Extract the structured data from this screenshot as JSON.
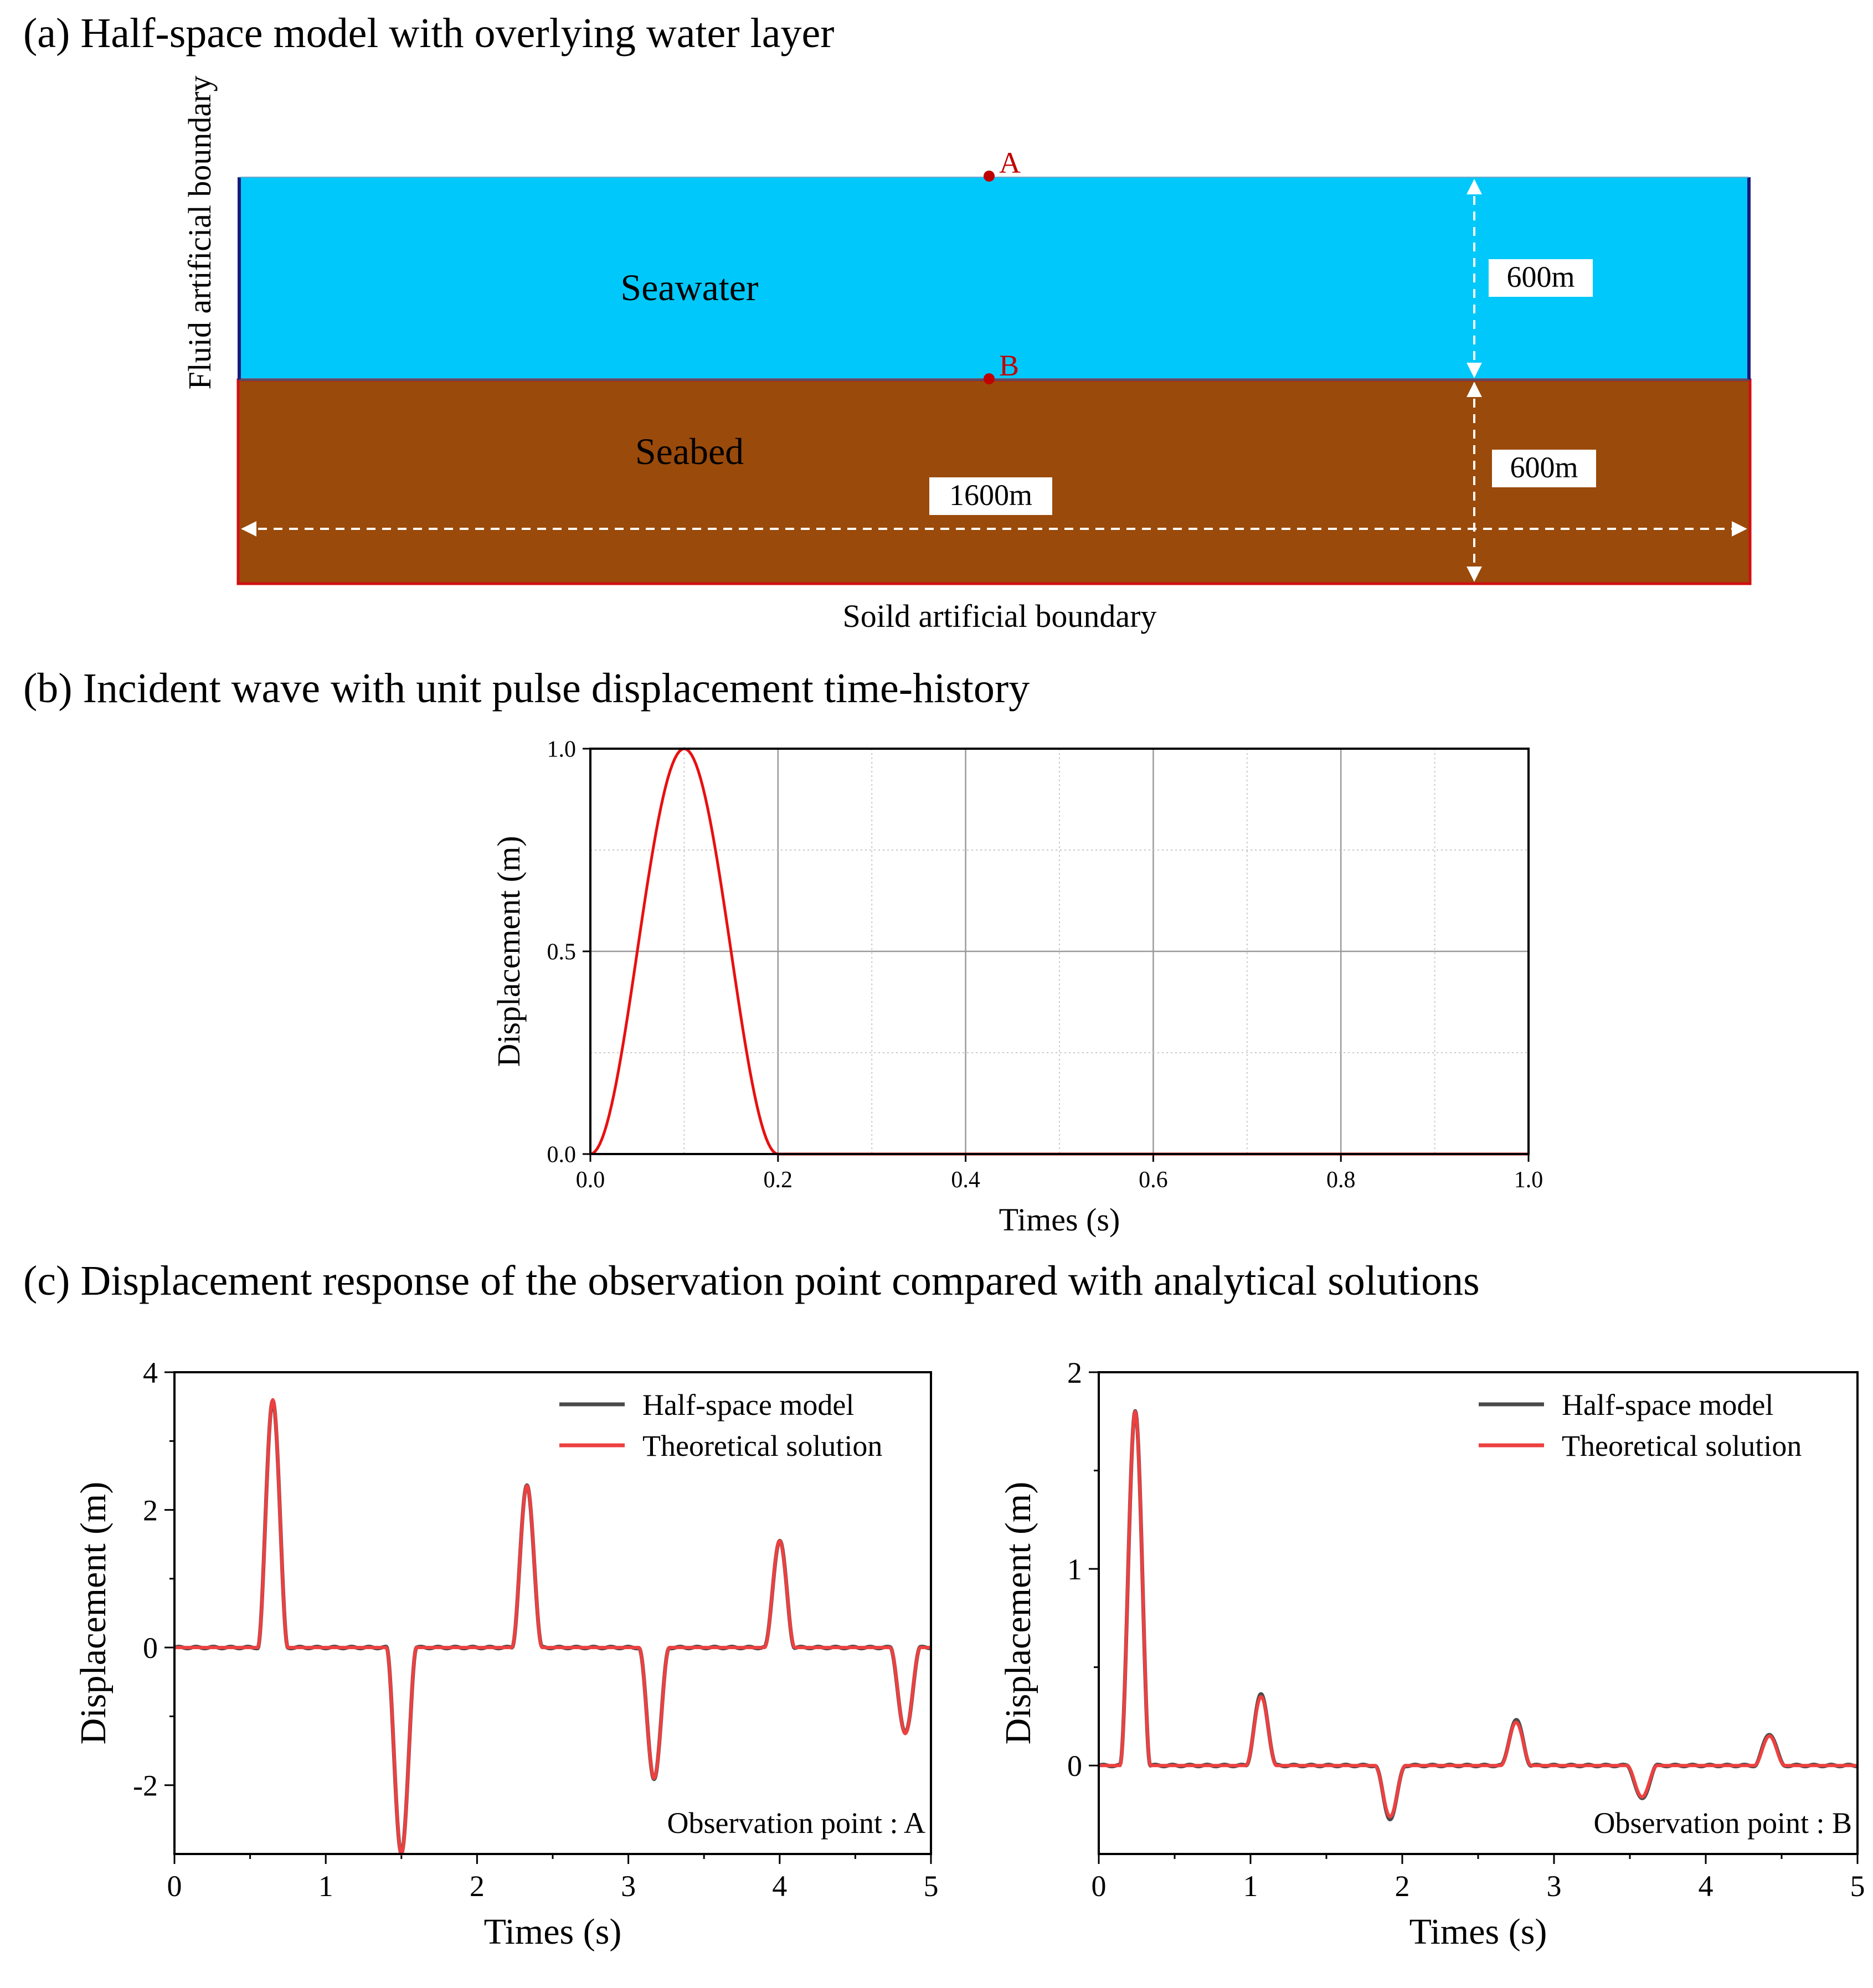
{
  "panel_a": {
    "title": "(a) Half-space model with overlying water layer",
    "fluid_boundary_label": "Fluid artificial boundary",
    "solid_boundary_label": "Soild artificial boundary",
    "seawater_label": "Seawater",
    "seabed_label": "Seabed",
    "point_a": "A",
    "point_b": "B",
    "water_depth_label": "600m",
    "seabed_depth_label": "600m",
    "width_label": "1600m",
    "colors": {
      "seawater": "#00c8fa",
      "seabed": "#9a4a0a",
      "points": "#c00000",
      "fluid_boundary": "#1a1a7a",
      "solid_boundary": "#d01010"
    }
  },
  "panel_b": {
    "title": "(b) Incident wave with unit pulse displacement time-history"
  },
  "panel_c": {
    "title": "(c) Displacement response of the observation point compared with analytical solutions"
  },
  "chart_data": [
    {
      "id": "incident",
      "type": "line",
      "xlabel": "Times (s)",
      "ylabel": "Displacement (m)",
      "xlim": [
        0,
        1.0
      ],
      "ylim": [
        0,
        1.0
      ],
      "xticks": [
        "0.0",
        "0.2",
        "0.4",
        "0.6",
        "0.8",
        "1.0"
      ],
      "xtick_values": [
        0,
        0.2,
        0.4,
        0.6,
        0.8,
        1.0
      ],
      "yticks": [
        "0.0",
        "0.5",
        "1.0"
      ],
      "ytick_values": [
        0,
        0.5,
        1.0
      ],
      "grid": true,
      "series": [
        {
          "color": "#e81010",
          "shape": "pulse",
          "x": [
            0,
            0.05,
            0.1,
            0.15,
            0.2,
            1.0
          ],
          "y": [
            0,
            0.5,
            1.0,
            0.5,
            0,
            0
          ]
        }
      ]
    },
    {
      "id": "point-A",
      "type": "line",
      "xlabel": "Times (s)",
      "ylabel": "Displacement (m)",
      "xlim": [
        0,
        5
      ],
      "ylim": [
        -3,
        4
      ],
      "xticks": [
        "0",
        "1",
        "2",
        "3",
        "4",
        "5"
      ],
      "xtick_values": [
        0,
        1,
        2,
        3,
        4,
        5
      ],
      "yticks": [
        "-2",
        "0",
        "2",
        "4"
      ],
      "ytick_values": [
        -2,
        0,
        2,
        4
      ],
      "grid": false,
      "annotation": "Observation point : A",
      "legend_position": "top-right",
      "pulse_half_width": 0.1,
      "series": [
        {
          "name": "Half-space model",
          "color": "#4a4a4a",
          "peaks_t": [
            0.65,
            1.5,
            2.33,
            3.17,
            4.0,
            4.83
          ],
          "peaks_y": [
            3.6,
            -3.0,
            2.35,
            -1.9,
            1.55,
            -1.25
          ]
        },
        {
          "name": "Theoretical solution",
          "color": "#ee4040",
          "peaks_t": [
            0.65,
            1.5,
            2.33,
            3.17,
            4.0,
            4.83
          ],
          "peaks_y": [
            3.6,
            -3.0,
            2.35,
            -1.9,
            1.55,
            -1.25
          ]
        }
      ]
    },
    {
      "id": "point-B",
      "type": "line",
      "xlabel": "Times (s)",
      "ylabel": "Displacement (m)",
      "xlim": [
        0,
        5
      ],
      "ylim": [
        -0.45,
        2
      ],
      "xticks": [
        "0",
        "1",
        "2",
        "3",
        "4",
        "5"
      ],
      "xtick_values": [
        0,
        1,
        2,
        3,
        4,
        5
      ],
      "yticks": [
        "0",
        "1",
        "2"
      ],
      "ytick_values": [
        0,
        1,
        2
      ],
      "grid": false,
      "annotation": "Observation point : B",
      "legend_position": "top-right",
      "pulse_half_width": 0.1,
      "series": [
        {
          "name": "Half-space model",
          "color": "#4a4a4a",
          "peaks_t": [
            0.24,
            1.07,
            1.92,
            2.75,
            3.58,
            4.42
          ],
          "peaks_y": [
            1.8,
            0.36,
            -0.27,
            0.23,
            -0.17,
            0.16
          ]
        },
        {
          "name": "Theoretical solution",
          "color": "#ee4040",
          "peaks_t": [
            0.24,
            1.07,
            1.92,
            2.75,
            3.58,
            4.42
          ],
          "peaks_y": [
            1.8,
            0.35,
            -0.26,
            0.22,
            -0.16,
            0.15
          ]
        }
      ]
    }
  ]
}
